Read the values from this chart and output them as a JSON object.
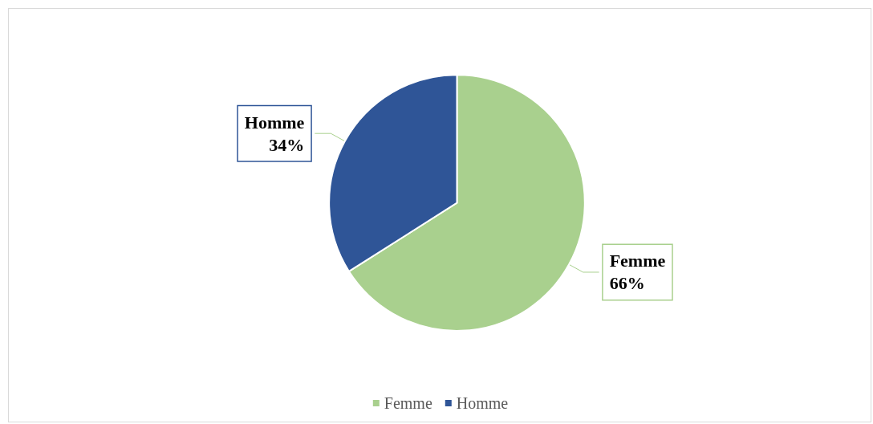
{
  "chart_data": {
    "type": "pie",
    "categories": [
      "Femme",
      "Homme"
    ],
    "values": [
      66,
      34
    ],
    "value_labels": [
      "66%",
      "34%"
    ],
    "colors": [
      "#a9d08e",
      "#2f5597"
    ],
    "legend": "bottom"
  }
}
